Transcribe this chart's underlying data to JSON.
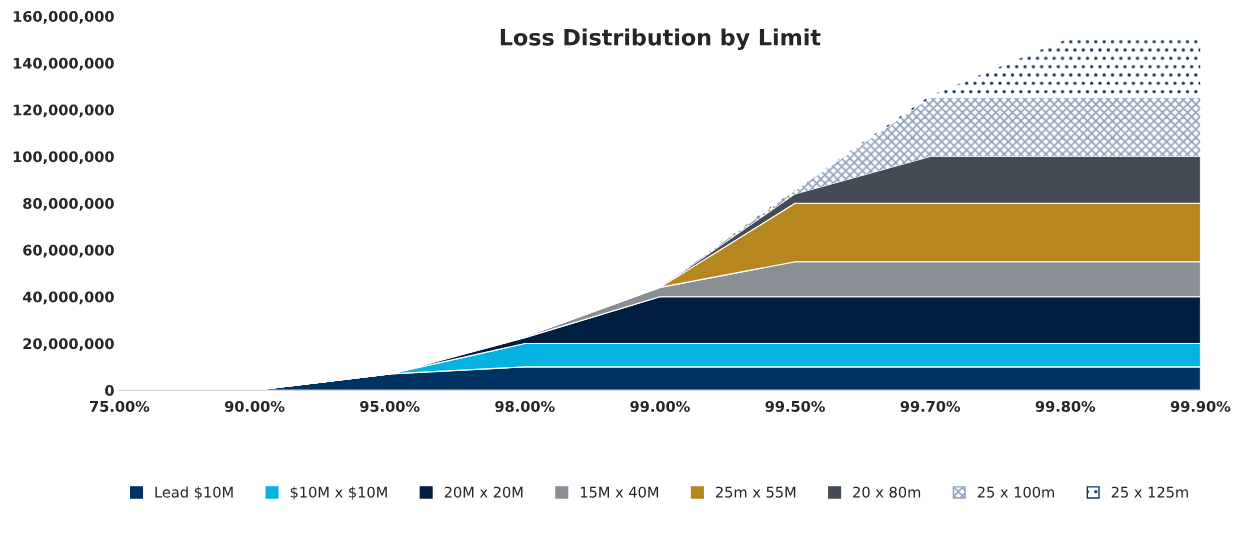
{
  "chart_data": {
    "type": "area",
    "stacked": true,
    "title": "Loss Distribution by Limit",
    "categories": [
      "75.00%",
      "90.00%",
      "95.00%",
      "98.00%",
      "99.00%",
      "99.50%",
      "99.70%",
      "99.80%",
      "99.90%"
    ],
    "series": [
      {
        "name": "Lead $10M",
        "color": "#003262",
        "values": [
          0,
          0,
          7000000,
          10000000,
          10000000,
          10000000,
          10000000,
          10000000,
          10000000
        ]
      },
      {
        "name": "$10M x $10M",
        "color": "#05b3e3",
        "values": [
          0,
          0,
          0,
          10000000,
          10000000,
          10000000,
          10000000,
          10000000,
          10000000
        ]
      },
      {
        "name": "20M x 20M",
        "color": "#001f40",
        "values": [
          0,
          0,
          0,
          2500000,
          20000000,
          20000000,
          20000000,
          20000000,
          20000000
        ]
      },
      {
        "name": "15M x 40M",
        "color": "#8a8e95",
        "values": [
          0,
          0,
          0,
          500000,
          4000000,
          15000000,
          15000000,
          15000000,
          15000000
        ]
      },
      {
        "name": "25m x 55M",
        "color": "#b5871e",
        "values": [
          0,
          0,
          0,
          0,
          0,
          25000000,
          25000000,
          25000000,
          25000000
        ]
      },
      {
        "name": "20 x 80m",
        "color": "#454b54",
        "values": [
          0,
          0,
          0,
          0,
          0,
          4000000,
          20000000,
          20000000,
          20000000
        ]
      },
      {
        "name": "25 x 100m",
        "color": "#8fa3ba",
        "values": [
          0,
          0,
          0,
          0,
          0,
          1500000,
          25000000,
          25000000,
          25000000
        ]
      },
      {
        "name": "25 x 125m",
        "color": "#0b3563",
        "values": [
          0,
          0,
          0,
          0,
          0,
          500000,
          1000000,
          25000000,
          25000000
        ]
      }
    ],
    "ylim": [
      0,
      160000000
    ],
    "yticks": [
      {
        "value": 0,
        "label": "0"
      },
      {
        "value": 20000000,
        "label": "20,000,000"
      },
      {
        "value": 40000000,
        "label": "40,000,000"
      },
      {
        "value": 60000000,
        "label": "60,000,000"
      },
      {
        "value": 80000000,
        "label": "80,000,000"
      },
      {
        "value": 100000000,
        "label": "100,000,000"
      },
      {
        "value": 120000000,
        "label": "120,000,000"
      },
      {
        "value": 140000000,
        "label": "140,000,000"
      },
      {
        "value": 160000000,
        "label": "160,000,000"
      }
    ],
    "grid": false,
    "legend": "bottom"
  }
}
